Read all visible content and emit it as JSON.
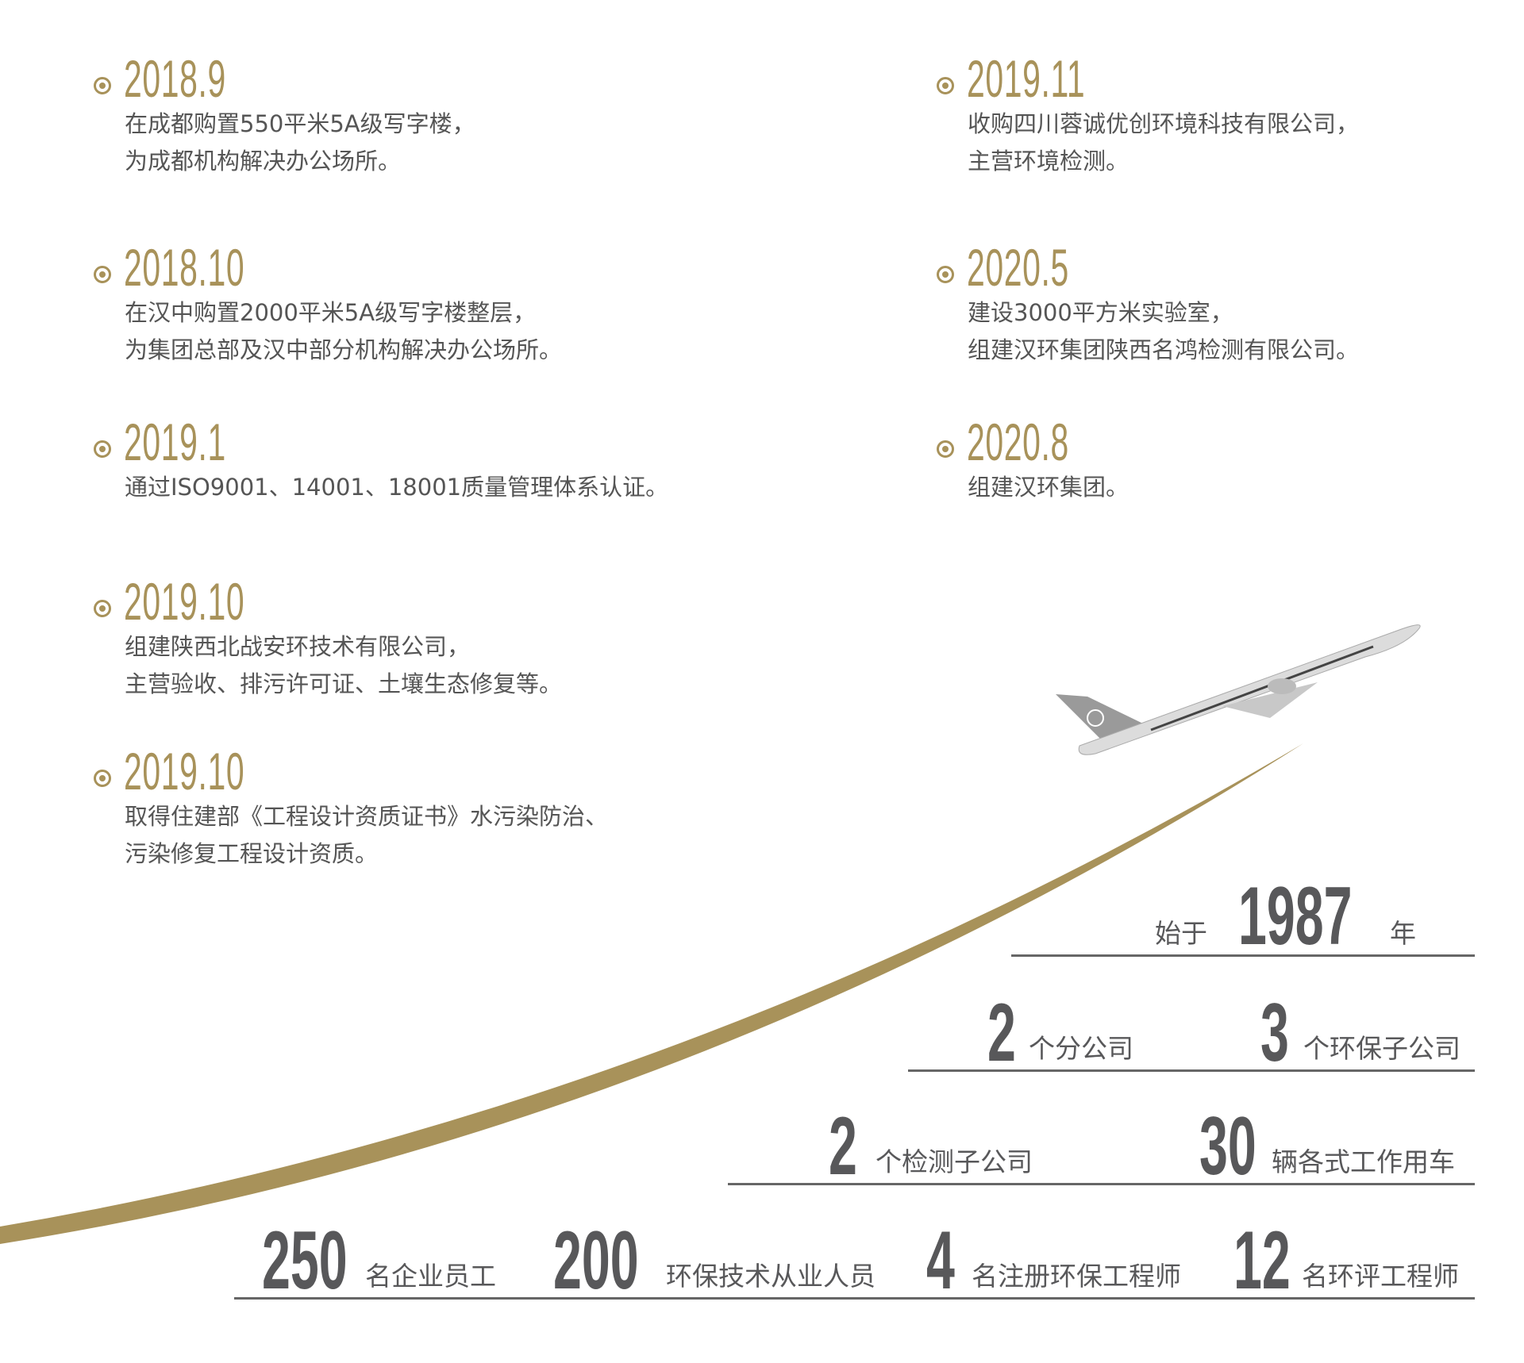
{
  "colors": {
    "accent": "#a8925a",
    "text": "#555555",
    "stat": "#58585a"
  },
  "timeline": [
    {
      "date": "2018.9",
      "lines": [
        "在成都购置550平米5A级写字楼，",
        "为成都机构解决办公场所。"
      ]
    },
    {
      "date": "2018.10",
      "lines": [
        "在汉中购置2000平米5A级写字楼整层，",
        "为集团总部及汉中部分机构解决办公场所。"
      ]
    },
    {
      "date": "2019.1",
      "lines": [
        "通过ISO9001、14001、18001质量管理体系认证。"
      ]
    },
    {
      "date": "2019.10",
      "lines": [
        "组建陕西北战安环技术有限公司，",
        "主营验收、排污许可证、土壤生态修复等。"
      ]
    },
    {
      "date": "2019.10",
      "lines": [
        "取得住建部《工程设计资质证书》水污染防治、",
        "污染修复工程设计资质。"
      ]
    },
    {
      "date": "2019.11",
      "lines": [
        "收购四川蓉诚优创环境科技有限公司，",
        "主营环境检测。"
      ]
    },
    {
      "date": "2020.5",
      "lines": [
        "建设3000平方米实验室，",
        "组建汉环集团陕西名鸿检测有限公司。"
      ]
    },
    {
      "date": "2020.8",
      "lines": [
        "组建汉环集团。"
      ]
    }
  ],
  "stats": {
    "since": {
      "prefix": "始于",
      "value": "1987",
      "suffix": "年"
    },
    "branches": {
      "value": "2",
      "label": "个分公司"
    },
    "env_subs": {
      "value": "3",
      "label": "个环保子公司"
    },
    "test_subs": {
      "value": "2",
      "label": "个检测子公司"
    },
    "vehicles": {
      "value": "30",
      "label": "辆各式工作用车"
    },
    "employees": {
      "value": "250",
      "label": "名企业员工"
    },
    "practitioners": {
      "value": "200",
      "label": "环保技术从业人员"
    },
    "reg_engineers": {
      "value": "4",
      "label": "名注册环保工程师"
    },
    "eia_engineers": {
      "value": "12",
      "label": "名环评工程师"
    }
  }
}
